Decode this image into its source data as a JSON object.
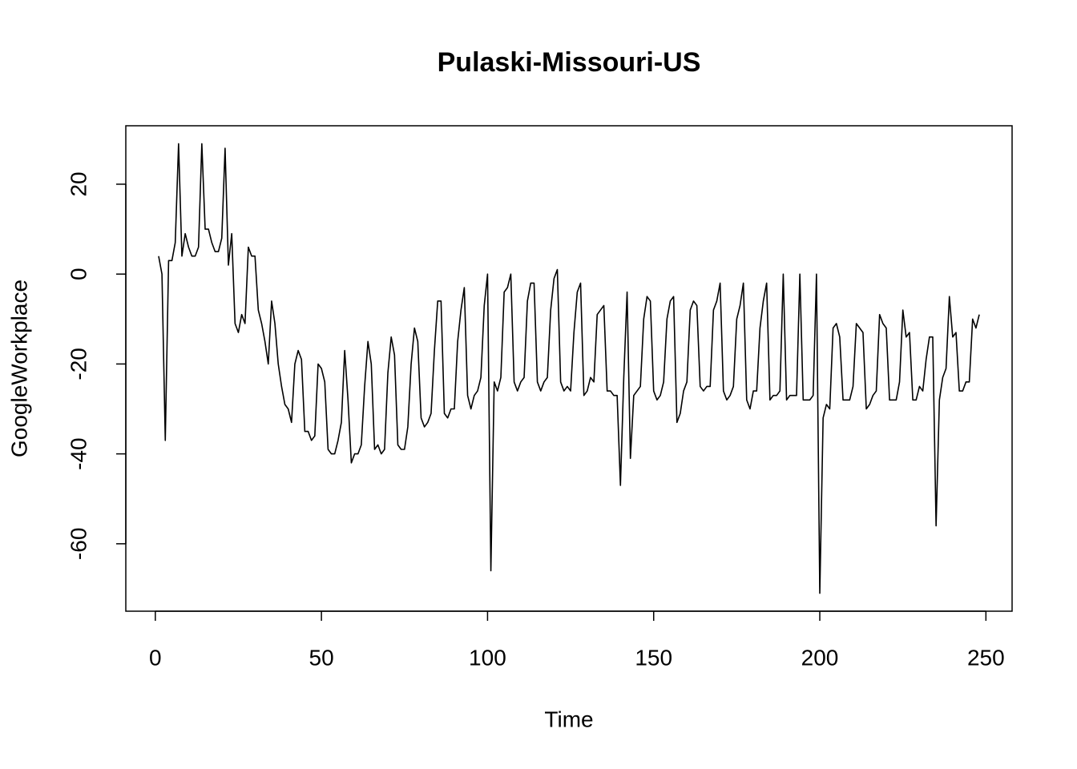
{
  "chart_data": {
    "type": "line",
    "title": "Pulaski-Missouri-US",
    "xlabel": "Time",
    "ylabel": "GoogleWorkplace",
    "x": [
      1,
      2,
      3,
      4,
      5,
      6,
      7,
      8,
      9,
      10,
      11,
      12,
      13,
      14,
      15,
      16,
      17,
      18,
      19,
      20,
      21,
      22,
      23,
      24,
      25,
      26,
      27,
      28,
      29,
      30,
      31,
      32,
      33,
      34,
      35,
      36,
      37,
      38,
      39,
      40,
      41,
      42,
      43,
      44,
      45,
      46,
      47,
      48,
      49,
      50,
      51,
      52,
      53,
      54,
      55,
      56,
      57,
      58,
      59,
      60,
      61,
      62,
      63,
      64,
      65,
      66,
      67,
      68,
      69,
      70,
      71,
      72,
      73,
      74,
      75,
      76,
      77,
      78,
      79,
      80,
      81,
      82,
      83,
      84,
      85,
      86,
      87,
      88,
      89,
      90,
      91,
      92,
      93,
      94,
      95,
      96,
      97,
      98,
      99,
      100,
      101,
      102,
      103,
      104,
      105,
      106,
      107,
      108,
      109,
      110,
      111,
      112,
      113,
      114,
      115,
      116,
      117,
      118,
      119,
      120,
      121,
      122,
      123,
      124,
      125,
      126,
      127,
      128,
      129,
      130,
      131,
      132,
      133,
      134,
      135,
      136,
      137,
      138,
      139,
      140,
      141,
      142,
      143,
      144,
      145,
      146,
      147,
      148,
      149,
      150,
      151,
      152,
      153,
      154,
      155,
      156,
      157,
      158,
      159,
      160,
      161,
      162,
      163,
      164,
      165,
      166,
      167,
      168,
      169,
      170,
      171,
      172,
      173,
      174,
      175,
      176,
      177,
      178,
      179,
      180,
      181,
      182,
      183,
      184,
      185,
      186,
      187,
      188,
      189,
      190,
      191,
      192,
      193,
      194,
      195,
      196,
      197,
      198,
      199,
      200,
      201,
      202,
      203,
      204,
      205,
      206,
      207,
      208,
      209,
      210,
      211,
      212,
      213,
      214,
      215,
      216,
      217,
      218,
      219,
      220,
      221,
      222,
      223,
      224,
      225,
      226,
      227,
      228,
      229,
      230,
      231,
      232,
      233,
      234,
      235,
      236,
      237,
      238,
      239,
      240,
      241,
      242,
      243,
      244,
      245,
      246,
      247,
      248
    ],
    "values": [
      4,
      0,
      -37,
      3,
      3,
      7,
      29,
      4,
      9,
      6,
      4,
      4,
      6,
      29,
      10,
      10,
      7,
      5,
      5,
      8,
      28,
      2,
      9,
      -11,
      -13,
      -9,
      -11,
      6,
      4,
      4,
      -8,
      -11,
      -15,
      -20,
      -6,
      -11,
      -20,
      -25,
      -29,
      -30,
      -33,
      -20,
      -17,
      -19,
      -35,
      -35,
      -37,
      -36,
      -20,
      -21,
      -24,
      -39,
      -40,
      -40,
      -37,
      -33,
      -17,
      -28,
      -42,
      -40,
      -40,
      -38,
      -25,
      -15,
      -20,
      -39,
      -38,
      -40,
      -39,
      -22,
      -14,
      -18,
      -38,
      -39,
      -39,
      -34,
      -20,
      -12,
      -15,
      -32,
      -34,
      -33,
      -31,
      -17,
      -6,
      -6,
      -31,
      -32,
      -30,
      -30,
      -15,
      -8,
      -3,
      -27,
      -30,
      -27,
      -26,
      -23,
      -7,
      0,
      -66,
      -24,
      -26,
      -23,
      -4,
      -3,
      0,
      -24,
      -26,
      -24,
      -23,
      -6,
      -2,
      -2,
      -24,
      -26,
      -24,
      -23,
      -8,
      -1,
      1,
      -24,
      -26,
      -25,
      -26,
      -13,
      -4,
      -2,
      -27,
      -26,
      -23,
      -24,
      -9,
      -8,
      -7,
      -26,
      -26,
      -27,
      -27,
      -47,
      -23,
      -4,
      -41,
      -27,
      -26,
      -25,
      -10,
      -5,
      -6,
      -26,
      -28,
      -27,
      -24,
      -10,
      -6,
      -5,
      -33,
      -31,
      -26,
      -24,
      -8,
      -6,
      -7,
      -25,
      -26,
      -25,
      -25,
      -8,
      -6,
      -2,
      -26,
      -28,
      -27,
      -25,
      -10,
      -7,
      -2,
      -28,
      -30,
      -26,
      -26,
      -12,
      -6,
      -2,
      -28,
      -27,
      -27,
      -26,
      0,
      -28,
      -27,
      -27,
      -27,
      0,
      -28,
      -28,
      -28,
      -27,
      0,
      -71,
      -32,
      -29,
      -30,
      -12,
      -11,
      -14,
      -28,
      -28,
      -28,
      -25,
      -11,
      -12,
      -13,
      -30,
      -29,
      -27,
      -26,
      -9,
      -11,
      -12,
      -28,
      -28,
      -28,
      -24,
      -8,
      -14,
      -13,
      -28,
      -28,
      -25,
      -26,
      -19,
      -14,
      -14,
      -56,
      -28,
      -23,
      -21,
      -5,
      -14,
      -13,
      -26,
      -26,
      -24,
      -24,
      -10,
      -12,
      -9
    ],
    "color": "#000000",
    "xlim": [
      -8.88,
      257.88
    ],
    "xticks": [
      0,
      50,
      100,
      150,
      200,
      250
    ],
    "ylim": [
      -75,
      33
    ],
    "yticks": [
      -60,
      -40,
      -20,
      0,
      20
    ]
  }
}
